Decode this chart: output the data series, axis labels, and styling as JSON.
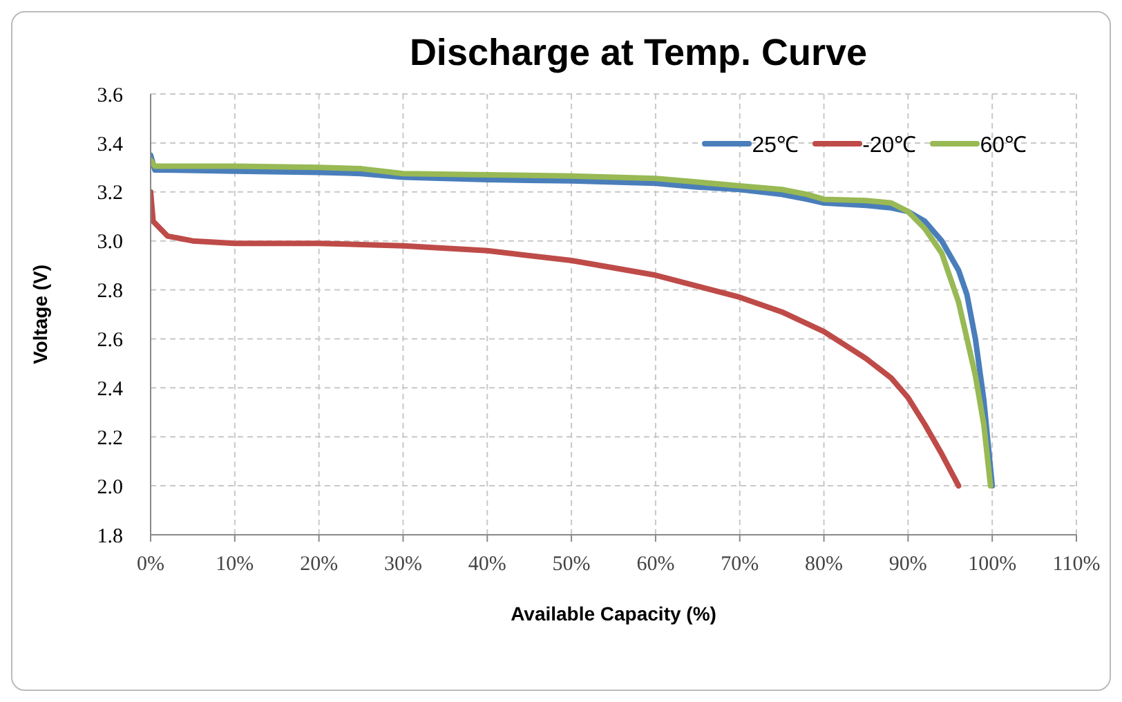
{
  "chart_data": {
    "type": "line",
    "title": "Discharge at Temp. Curve",
    "xlabel": "Available Capacity (%)",
    "ylabel": "Voltage (V)",
    "xlim": [
      0,
      110
    ],
    "xticks": [
      {
        "value": 0,
        "label": "0%"
      },
      {
        "value": 10,
        "label": "10%"
      },
      {
        "value": 20,
        "label": "20%"
      },
      {
        "value": 30,
        "label": "30%"
      },
      {
        "value": 40,
        "label": "40%"
      },
      {
        "value": 50,
        "label": "50%"
      },
      {
        "value": 60,
        "label": "60%"
      },
      {
        "value": 70,
        "label": "70%"
      },
      {
        "value": 80,
        "label": "80%"
      },
      {
        "value": 90,
        "label": "90%"
      },
      {
        "value": 100,
        "label": "100%"
      },
      {
        "value": 110,
        "label": "110%"
      }
    ],
    "ylim": [
      1.8,
      3.6
    ],
    "yticks": [
      {
        "value": 1.8,
        "label": "1.8"
      },
      {
        "value": 2.0,
        "label": "2.0"
      },
      {
        "value": 2.2,
        "label": "2.2"
      },
      {
        "value": 2.4,
        "label": "2.4"
      },
      {
        "value": 2.6,
        "label": "2.6"
      },
      {
        "value": 2.8,
        "label": "2.8"
      },
      {
        "value": 3.0,
        "label": "3.0"
      },
      {
        "value": 3.2,
        "label": "3.2"
      },
      {
        "value": 3.4,
        "label": "3.4"
      },
      {
        "value": 3.6,
        "label": "3.6"
      }
    ],
    "grid": true,
    "legend": "top right",
    "marker": "none",
    "line_style": "solid",
    "series": [
      {
        "name": "25℃",
        "color": "#4a7ebb",
        "x": [
          0,
          0.5,
          10,
          20,
          25,
          30,
          40,
          50,
          60,
          65,
          70,
          75,
          78,
          80,
          85,
          88,
          90,
          92,
          94,
          96,
          97,
          98,
          99,
          100
        ],
        "values": [
          3.35,
          3.29,
          3.285,
          3.28,
          3.275,
          3.26,
          3.25,
          3.245,
          3.235,
          3.22,
          3.21,
          3.19,
          3.17,
          3.155,
          3.145,
          3.135,
          3.12,
          3.08,
          3.0,
          2.88,
          2.78,
          2.6,
          2.35,
          2.0
        ]
      },
      {
        "name": "-20℃",
        "color": "#be4b48",
        "x": [
          0,
          0.3,
          2,
          5,
          10,
          20,
          30,
          40,
          50,
          60,
          70,
          75,
          80,
          85,
          88,
          90,
          92,
          94,
          96
        ],
        "values": [
          3.2,
          3.08,
          3.02,
          3.0,
          2.99,
          2.99,
          2.98,
          2.96,
          2.92,
          2.86,
          2.77,
          2.71,
          2.63,
          2.52,
          2.44,
          2.36,
          2.25,
          2.13,
          2.0
        ]
      },
      {
        "name": "60℃",
        "color": "#98b954",
        "x": [
          0,
          0.5,
          10,
          20,
          25,
          30,
          40,
          50,
          60,
          65,
          70,
          75,
          78,
          80,
          85,
          88,
          90,
          92,
          94,
          95,
          96,
          97,
          98,
          99,
          99.8
        ],
        "values": [
          3.33,
          3.305,
          3.305,
          3.3,
          3.295,
          3.275,
          3.27,
          3.265,
          3.255,
          3.24,
          3.225,
          3.21,
          3.19,
          3.17,
          3.165,
          3.155,
          3.12,
          3.05,
          2.95,
          2.85,
          2.75,
          2.6,
          2.45,
          2.25,
          2.0
        ]
      }
    ]
  }
}
